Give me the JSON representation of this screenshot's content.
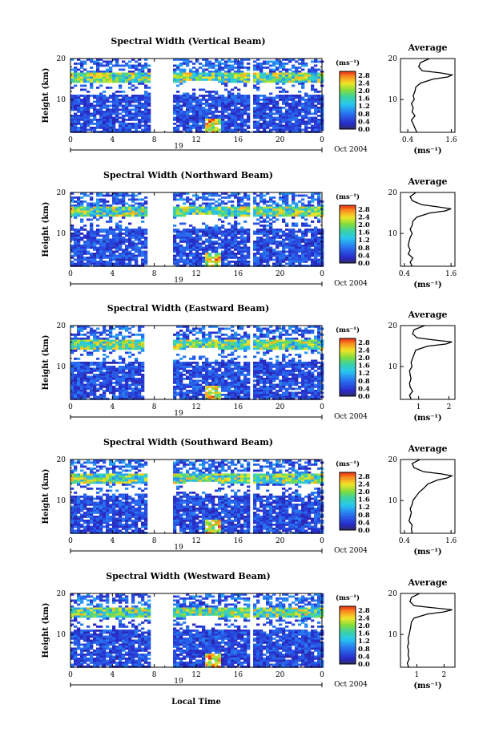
{
  "shared": {
    "local_time_label": "Local Time",
    "height_label": "Height (km)",
    "unit_label": "(ms⁻¹)",
    "average_title": "Average",
    "date_day": "19",
    "date_text": "Oct 2004"
  },
  "chart_data": [
    {
      "type": "heatmap",
      "title": "Spectral Width (Vertical Beam)",
      "x_ticks": [
        "0",
        "4",
        "8",
        "12",
        "16",
        "20",
        "0"
      ],
      "y_ticks": [
        "20",
        "10"
      ],
      "xlim": [
        0,
        24
      ],
      "ylim": [
        2,
        20
      ],
      "data_gap_hours": [
        [
          7.6,
          9.6
        ]
      ],
      "colorbar_ticks": [
        "2.8",
        "2.4",
        "2.0",
        "1.6",
        "1.2",
        "0.8",
        "0.4",
        "0.0"
      ],
      "colorbar_range": [
        0,
        3.0
      ],
      "profile": {
        "x_ticks": [
          "0.4",
          "1.6"
        ],
        "xlim": [
          0.2,
          1.7
        ],
        "y_ticks": [
          "20",
          "10"
        ],
        "heights": [
          2,
          3,
          4,
          5,
          6,
          7,
          8,
          9,
          10,
          11,
          12,
          13,
          14,
          15,
          15.5,
          16,
          16.5,
          17,
          18,
          19,
          20
        ],
        "values": [
          0.65,
          0.6,
          0.55,
          0.5,
          0.6,
          0.52,
          0.55,
          0.5,
          0.58,
          0.55,
          0.6,
          0.62,
          0.75,
          1.1,
          1.5,
          1.62,
          1.3,
          0.8,
          0.7,
          0.75,
          1.0
        ]
      }
    },
    {
      "type": "heatmap",
      "title": "Spectral Width (Northward Beam)",
      "x_ticks": [
        "0",
        "4",
        "8",
        "12",
        "16",
        "20",
        "0"
      ],
      "y_ticks": [
        "20",
        "10"
      ],
      "xlim": [
        0,
        24
      ],
      "ylim": [
        2,
        20
      ],
      "data_gap_hours": [
        [
          7.2,
          9.6
        ]
      ],
      "colorbar_ticks": [
        "2.8",
        "2.4",
        "2.0",
        "1.6",
        "1.2",
        "0.8",
        "0.4",
        "0.0"
      ],
      "colorbar_range": [
        0,
        3.0
      ],
      "profile": {
        "x_ticks": [
          "0.4",
          "1.6"
        ],
        "xlim": [
          0.3,
          1.7
        ],
        "y_ticks": [
          "20",
          "10"
        ],
        "heights": [
          2,
          3,
          4,
          5,
          6,
          7,
          8,
          9,
          10,
          11,
          12,
          13,
          14,
          15,
          15.5,
          16,
          16.5,
          17,
          18,
          19,
          20
        ],
        "values": [
          0.6,
          0.55,
          0.62,
          0.5,
          0.55,
          0.5,
          0.52,
          0.55,
          0.6,
          0.55,
          0.6,
          0.62,
          0.72,
          1.05,
          1.45,
          1.6,
          1.25,
          0.85,
          0.6,
          0.55,
          0.7
        ]
      }
    },
    {
      "type": "heatmap",
      "title": "Spectral Width (Eastward Beam)",
      "x_ticks": [
        "0",
        "4",
        "8",
        "12",
        "16",
        "20",
        "0"
      ],
      "y_ticks": [
        "20",
        "10"
      ],
      "xlim": [
        0,
        24
      ],
      "ylim": [
        2,
        20
      ],
      "data_gap_hours": [
        [
          7.0,
          9.6
        ]
      ],
      "colorbar_ticks": [
        "2.8",
        "2.4",
        "2.0",
        "1.6",
        "1.2",
        "0.8",
        "0.4",
        "0.0"
      ],
      "colorbar_range": [
        0,
        3.0
      ],
      "profile": {
        "x_ticks": [
          "1",
          "2"
        ],
        "xlim": [
          0.4,
          2.2
        ],
        "y_ticks": [
          "20",
          "10"
        ],
        "heights": [
          2,
          3,
          4,
          5,
          6,
          7,
          8,
          9,
          10,
          11,
          12,
          13,
          14,
          15,
          15.5,
          16,
          16.5,
          17,
          18,
          19,
          20
        ],
        "values": [
          0.75,
          0.7,
          0.8,
          0.72,
          0.7,
          0.75,
          0.72,
          0.7,
          0.78,
          0.75,
          0.8,
          0.85,
          0.9,
          1.3,
          1.9,
          2.1,
          1.5,
          0.95,
          0.8,
          0.85,
          1.2
        ]
      }
    },
    {
      "type": "heatmap",
      "title": "Spectral Width (Southward Beam)",
      "x_ticks": [
        "0",
        "4",
        "8",
        "12",
        "16",
        "20",
        "0"
      ],
      "y_ticks": [
        "20",
        "10"
      ],
      "xlim": [
        0,
        24
      ],
      "ylim": [
        2,
        20
      ],
      "data_gap_hours": [
        [
          7.2,
          9.6
        ]
      ],
      "colorbar_ticks": [
        "2.8",
        "2.4",
        "2.0",
        "1.6",
        "1.2",
        "0.8",
        "0.4",
        "0.0"
      ],
      "colorbar_range": [
        0,
        3.0
      ],
      "profile": {
        "x_ticks": [
          "0.4",
          "1.6"
        ],
        "xlim": [
          0.3,
          1.7
        ],
        "y_ticks": [
          "20",
          "10"
        ],
        "heights": [
          2,
          3,
          4,
          5,
          6,
          7,
          8,
          9,
          10,
          11,
          12,
          13,
          14,
          15,
          15.5,
          16,
          16.5,
          17,
          18,
          19,
          20
        ],
        "values": [
          0.6,
          0.58,
          0.6,
          0.52,
          0.55,
          0.58,
          0.55,
          0.6,
          0.62,
          0.7,
          0.78,
          0.9,
          1.0,
          1.25,
          1.5,
          1.62,
          1.35,
          0.9,
          0.65,
          0.6,
          0.8
        ]
      }
    },
    {
      "type": "heatmap",
      "title": "Spectral Width (Westward Beam)",
      "x_ticks": [
        "0",
        "4",
        "8",
        "12",
        "16",
        "20",
        "0"
      ],
      "y_ticks": [
        "20",
        "10"
      ],
      "xlim": [
        0,
        24
      ],
      "ylim": [
        2,
        20
      ],
      "data_gap_hours": [
        [
          7.4,
          9.6
        ]
      ],
      "colorbar_ticks": [
        "2.8",
        "2.4",
        "2.0",
        "1.6",
        "1.2",
        "0.8",
        "0.4",
        "0.0"
      ],
      "colorbar_range": [
        0,
        3.0
      ],
      "profile": {
        "x_ticks": [
          "1",
          "2"
        ],
        "xlim": [
          0.4,
          2.4
        ],
        "y_ticks": [
          "20",
          "10"
        ],
        "heights": [
          2,
          3,
          4,
          5,
          6,
          7,
          8,
          9,
          10,
          11,
          12,
          13,
          14,
          15,
          15.5,
          16,
          16.5,
          17,
          18,
          19,
          20
        ],
        "values": [
          0.7,
          0.65,
          0.72,
          0.68,
          0.7,
          0.66,
          0.7,
          0.68,
          0.72,
          0.75,
          0.78,
          0.8,
          0.9,
          1.4,
          2.0,
          2.3,
          1.6,
          0.9,
          0.75,
          0.8,
          1.1
        ]
      }
    }
  ]
}
